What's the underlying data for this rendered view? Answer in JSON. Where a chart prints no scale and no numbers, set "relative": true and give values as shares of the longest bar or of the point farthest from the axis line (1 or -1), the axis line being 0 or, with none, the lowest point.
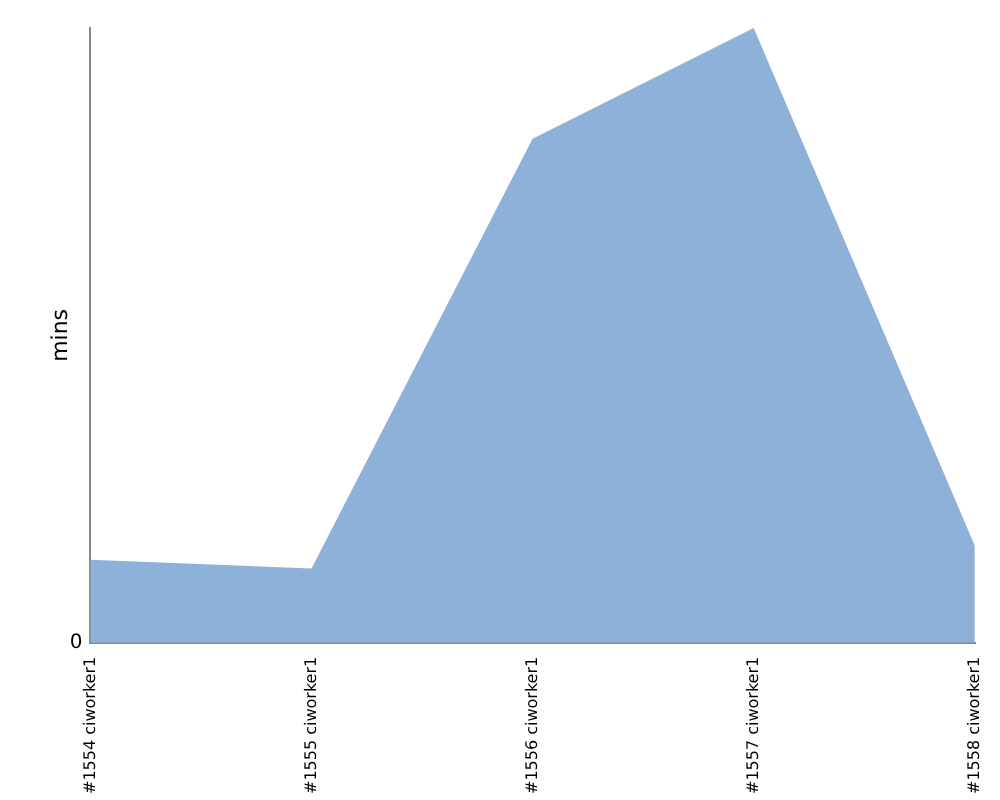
{
  "chart_data": {
    "type": "area",
    "relative": true,
    "ylabel": "mins",
    "categories": [
      "#1554 ciworker1",
      "#1555 ciworker1",
      "#1556 ciworker1",
      "#1557 ciworker1",
      "#1558 ciworker1"
    ],
    "series": [
      {
        "color": "#8eb1da",
        "values": [
          0.135,
          0.121,
          0.82,
          1,
          0.158
        ]
      }
    ],
    "annotations": [
      "0"
    ],
    "grid": false,
    "legend": false
  }
}
